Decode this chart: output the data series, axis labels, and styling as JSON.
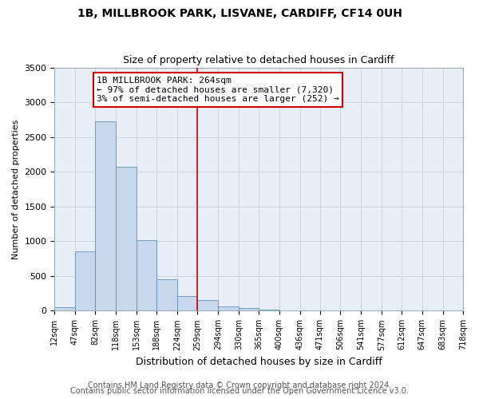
{
  "title": "1B, MILLBROOK PARK, LISVANE, CARDIFF, CF14 0UH",
  "subtitle": "Size of property relative to detached houses in Cardiff",
  "xlabel": "Distribution of detached houses by size in Cardiff",
  "ylabel": "Number of detached properties",
  "bin_edges": [
    12,
    47,
    82,
    118,
    153,
    188,
    224,
    259,
    294,
    330,
    365,
    400,
    436,
    471,
    506,
    541,
    577,
    612,
    647,
    683,
    718
  ],
  "bar_heights": [
    50,
    850,
    2730,
    2075,
    1010,
    455,
    210,
    150,
    65,
    40,
    20,
    5,
    0,
    0,
    0,
    0,
    0,
    0,
    0,
    0
  ],
  "bar_color": "#c8d8ec",
  "bar_edge_color": "#6090c0",
  "vline_x": 259,
  "vline_color": "#cc0000",
  "annotation_text": "1B MILLBROOK PARK: 264sqm\n← 97% of detached houses are smaller (7,320)\n3% of semi-detached houses are larger (252) →",
  "annotation_box_color": "#ffffff",
  "annotation_box_edge": "#cc0000",
  "ylim": [
    0,
    3500
  ],
  "yticks": [
    0,
    500,
    1000,
    1500,
    2000,
    2500,
    3000,
    3500
  ],
  "tick_labels": [
    "12sqm",
    "47sqm",
    "82sqm",
    "118sqm",
    "153sqm",
    "188sqm",
    "224sqm",
    "259sqm",
    "294sqm",
    "330sqm",
    "365sqm",
    "400sqm",
    "436sqm",
    "471sqm",
    "506sqm",
    "541sqm",
    "577sqm",
    "612sqm",
    "647sqm",
    "683sqm",
    "718sqm"
  ],
  "footer1": "Contains HM Land Registry data © Crown copyright and database right 2024.",
  "footer2": "Contains public sector information licensed under the Open Government Licence v3.0.",
  "bg_color": "#ffffff",
  "plot_bg_color": "#e8eef6",
  "grid_color": "#c8d4e0",
  "title_fontsize": 10,
  "subtitle_fontsize": 9,
  "annotation_fontsize": 8,
  "ylabel_fontsize": 8,
  "xlabel_fontsize": 9,
  "footer_fontsize": 7,
  "ytick_fontsize": 8,
  "xtick_fontsize": 7
}
